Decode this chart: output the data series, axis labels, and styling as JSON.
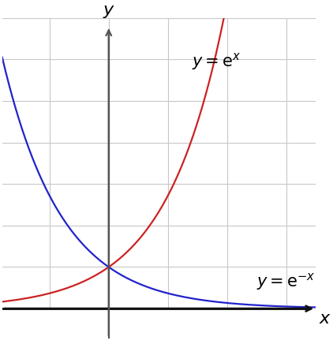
{
  "x_min": -1.8,
  "x_max": 3.5,
  "y_min": -0.8,
  "y_max": 7.0,
  "y_axis_x": 0.0,
  "x_axis_y": 0.0,
  "color_exp": "#cc2222",
  "color_exp_neg": "#2222cc",
  "grid_color": "#c8c8c8",
  "axis_color_x": "#111111",
  "axis_color_y": "#555555",
  "background_color": "#ffffff",
  "line_width": 1.6,
  "figsize": [
    4.22,
    4.36
  ],
  "dpi": 100,
  "label_fontsize": 16,
  "annotation_fontsize": 15
}
